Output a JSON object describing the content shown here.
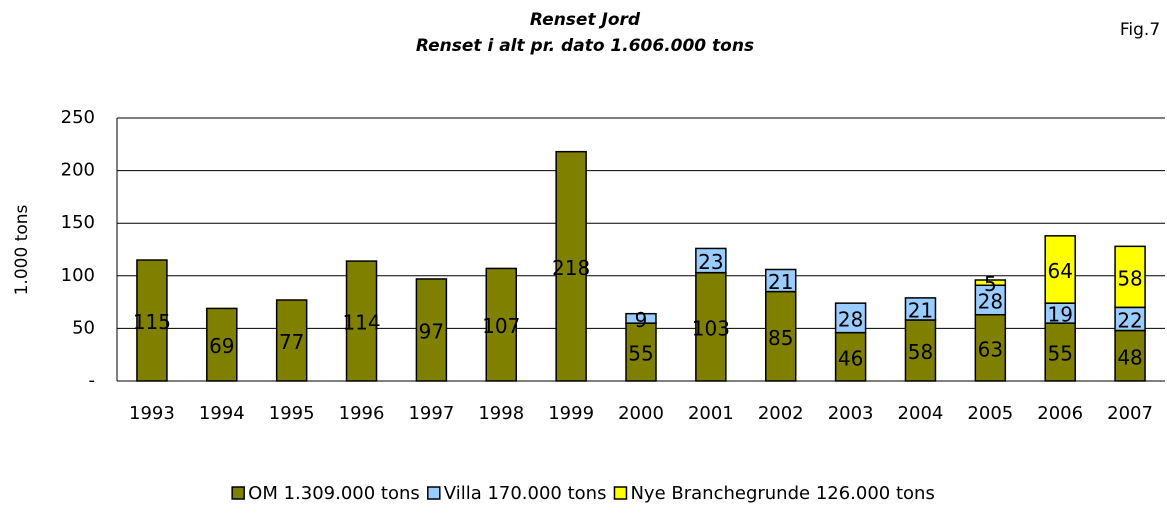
{
  "chart_data": {
    "type": "stacked_bar",
    "title": "Renset Jord",
    "subtitle": "Renset i alt pr. dato 1.606.000 tons",
    "annotation": "Fig.7",
    "y_label": "1.000 tons",
    "categories": [
      "1993",
      "1994",
      "1995",
      "1996",
      "1997",
      "1998",
      "1999",
      "2000",
      "2001",
      "2002",
      "2003",
      "2004",
      "2005",
      "2006",
      "2007"
    ],
    "series": [
      {
        "name": "OM 1.309.000 tons",
        "color": "#808000",
        "values": [
          115,
          69,
          77,
          114,
          97,
          107,
          218,
          55,
          103,
          85,
          46,
          58,
          63,
          55,
          48
        ]
      },
      {
        "name": "Villa 170.000 tons",
        "color": "#99ccff",
        "values": [
          null,
          null,
          null,
          null,
          null,
          null,
          null,
          9,
          23,
          21,
          28,
          21,
          28,
          19,
          22
        ]
      },
      {
        "name": "Nye Branchegrunde 126.000 tons",
        "color": "#ffff00",
        "values": [
          null,
          null,
          null,
          null,
          null,
          null,
          null,
          null,
          null,
          null,
          null,
          null,
          5,
          64,
          58
        ]
      }
    ],
    "ylim": [
      0,
      250
    ],
    "yticks": [
      {
        "value": 0,
        "label": "-"
      },
      50,
      100,
      150,
      200,
      250
    ],
    "legend": "bottom"
  }
}
